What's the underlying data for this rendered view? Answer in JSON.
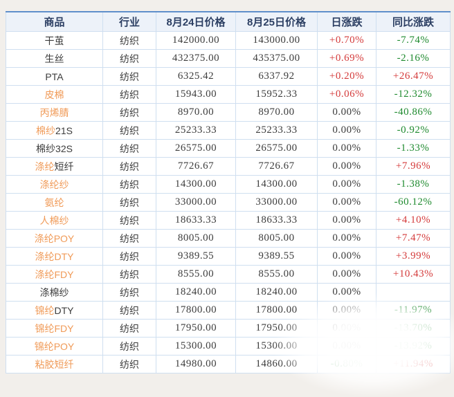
{
  "colors": {
    "page_background": "#f2efeb",
    "table_background": "#ffffff",
    "header_background": "#edf2f9",
    "header_text": "#2c3f63",
    "top_border": "#5e8fcb",
    "grid_border": "#cfdff0",
    "text_dark": "#3c3c3c",
    "link_orange": "#f09a57",
    "up_red": "#d43a3a",
    "down_green": "#1e8a2e"
  },
  "table": {
    "columns": [
      {
        "label": "商品"
      },
      {
        "label": "行业"
      },
      {
        "label": "8月24日价格"
      },
      {
        "label": "8月25日价格"
      },
      {
        "label": "日涨跌"
      },
      {
        "label": "同比涨跌"
      }
    ],
    "rows": [
      {
        "name": [
          {
            "text": "干茧",
            "color": "dark"
          }
        ],
        "industry": "纺织",
        "price_0824": "142000.00",
        "price_0825": "143000.00",
        "day_change": {
          "text": "+0.70%",
          "color": "red"
        },
        "yoy_change": {
          "text": "-7.74%",
          "color": "green"
        }
      },
      {
        "name": [
          {
            "text": "生丝",
            "color": "dark"
          }
        ],
        "industry": "纺织",
        "price_0824": "432375.00",
        "price_0825": "435375.00",
        "day_change": {
          "text": "+0.69%",
          "color": "red"
        },
        "yoy_change": {
          "text": "-2.16%",
          "color": "green"
        }
      },
      {
        "name": [
          {
            "text": "PTA",
            "color": "dark"
          }
        ],
        "industry": "纺织",
        "price_0824": "6325.42",
        "price_0825": "6337.92",
        "day_change": {
          "text": "+0.20%",
          "color": "red"
        },
        "yoy_change": {
          "text": "+26.47%",
          "color": "red"
        }
      },
      {
        "name": [
          {
            "text": "皮棉",
            "color": "orange"
          }
        ],
        "industry": "纺织",
        "price_0824": "15943.00",
        "price_0825": "15952.33",
        "day_change": {
          "text": "+0.06%",
          "color": "red"
        },
        "yoy_change": {
          "text": "-12.32%",
          "color": "green"
        }
      },
      {
        "name": [
          {
            "text": "丙烯腈",
            "color": "orange"
          }
        ],
        "industry": "纺织",
        "price_0824": "8970.00",
        "price_0825": "8970.00",
        "day_change": {
          "text": "0.00%",
          "color": "dark"
        },
        "yoy_change": {
          "text": "-40.86%",
          "color": "green"
        }
      },
      {
        "name": [
          {
            "text": "棉纱",
            "color": "orange"
          },
          {
            "text": "21S",
            "color": "dark"
          }
        ],
        "industry": "纺织",
        "price_0824": "25233.33",
        "price_0825": "25233.33",
        "day_change": {
          "text": "0.00%",
          "color": "dark"
        },
        "yoy_change": {
          "text": "-0.92%",
          "color": "green"
        }
      },
      {
        "name": [
          {
            "text": "棉纱32S",
            "color": "dark"
          }
        ],
        "industry": "纺织",
        "price_0824": "26575.00",
        "price_0825": "26575.00",
        "day_change": {
          "text": "0.00%",
          "color": "dark"
        },
        "yoy_change": {
          "text": "-1.33%",
          "color": "green"
        }
      },
      {
        "name": [
          {
            "text": "涤纶",
            "color": "orange"
          },
          {
            "text": "短纤",
            "color": "dark"
          }
        ],
        "industry": "纺织",
        "price_0824": "7726.67",
        "price_0825": "7726.67",
        "day_change": {
          "text": "0.00%",
          "color": "dark"
        },
        "yoy_change": {
          "text": "+7.96%",
          "color": "red"
        }
      },
      {
        "name": [
          {
            "text": "涤纶纱",
            "color": "orange"
          }
        ],
        "industry": "纺织",
        "price_0824": "14300.00",
        "price_0825": "14300.00",
        "day_change": {
          "text": "0.00%",
          "color": "dark"
        },
        "yoy_change": {
          "text": "-1.38%",
          "color": "green"
        }
      },
      {
        "name": [
          {
            "text": "氨纶",
            "color": "orange"
          }
        ],
        "industry": "纺织",
        "price_0824": "33000.00",
        "price_0825": "33000.00",
        "day_change": {
          "text": "0.00%",
          "color": "dark"
        },
        "yoy_change": {
          "text": "-60.12%",
          "color": "green"
        }
      },
      {
        "name": [
          {
            "text": "人棉纱",
            "color": "orange"
          }
        ],
        "industry": "纺织",
        "price_0824": "18633.33",
        "price_0825": "18633.33",
        "day_change": {
          "text": "0.00%",
          "color": "dark"
        },
        "yoy_change": {
          "text": "+4.10%",
          "color": "red"
        }
      },
      {
        "name": [
          {
            "text": "涤纶POY",
            "color": "orange"
          }
        ],
        "industry": "纺织",
        "price_0824": "8005.00",
        "price_0825": "8005.00",
        "day_change": {
          "text": "0.00%",
          "color": "dark"
        },
        "yoy_change": {
          "text": "+7.47%",
          "color": "red"
        }
      },
      {
        "name": [
          {
            "text": "涤纶DTY",
            "color": "orange"
          }
        ],
        "industry": "纺织",
        "price_0824": "9389.55",
        "price_0825": "9389.55",
        "day_change": {
          "text": "0.00%",
          "color": "dark"
        },
        "yoy_change": {
          "text": "+3.99%",
          "color": "red"
        }
      },
      {
        "name": [
          {
            "text": "涤纶FDY",
            "color": "orange"
          }
        ],
        "industry": "纺织",
        "price_0824": "8555.00",
        "price_0825": "8555.00",
        "day_change": {
          "text": "0.00%",
          "color": "dark"
        },
        "yoy_change": {
          "text": "+10.43%",
          "color": "red"
        }
      },
      {
        "name": [
          {
            "text": "涤棉纱",
            "color": "dark"
          }
        ],
        "industry": "纺织",
        "price_0824": "18240.00",
        "price_0825": "18240.00",
        "day_change": {
          "text": "0.00%",
          "color": "dark"
        },
        "yoy_change": {
          "text": "",
          "color": "dark"
        }
      },
      {
        "name": [
          {
            "text": "锦纶",
            "color": "orange"
          },
          {
            "text": "DTY",
            "color": "dark"
          }
        ],
        "industry": "纺织",
        "price_0824": "17800.00",
        "price_0825": "17800.00",
        "day_change": {
          "text": "0.00%",
          "color": "dark"
        },
        "yoy_change": {
          "text": "-11.97%",
          "color": "green"
        }
      },
      {
        "name": [
          {
            "text": "锦纶FDY",
            "color": "orange"
          }
        ],
        "industry": "纺织",
        "price_0824": "17950.00",
        "price_0825": "17950.00",
        "day_change": {
          "text": "0.00%",
          "color": "dark"
        },
        "yoy_change": {
          "text": "-13.70%",
          "color": "green"
        }
      },
      {
        "name": [
          {
            "text": "锦纶POY",
            "color": "orange"
          }
        ],
        "industry": "纺织",
        "price_0824": "15300.00",
        "price_0825": "15300.00",
        "day_change": {
          "text": "0.00%",
          "color": "dark"
        },
        "yoy_change": {
          "text": "-13.92%",
          "color": "green"
        }
      },
      {
        "name": [
          {
            "text": "粘胶短纤",
            "color": "orange"
          }
        ],
        "industry": "纺织",
        "price_0824": "14980.00",
        "price_0825": "14860.00",
        "day_change": {
          "text": "-0.80%",
          "color": "green"
        },
        "yoy_change": {
          "text": "+11.94%",
          "color": "red"
        }
      }
    ]
  }
}
